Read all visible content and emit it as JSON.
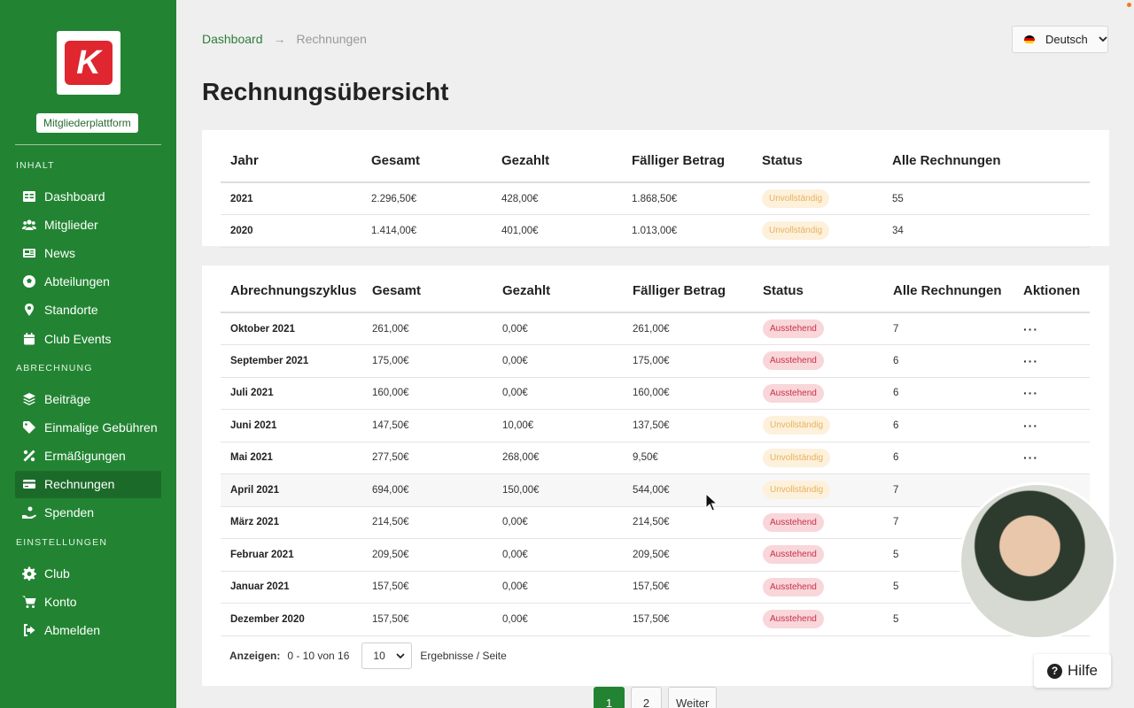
{
  "brand": {
    "logo_letter": "K",
    "platform_label": "Mitgliederplattform",
    "logo_color": "#e0262f",
    "sidebar_color": "#228432"
  },
  "sidebar": {
    "sections": [
      {
        "label": "INHALT",
        "items": [
          {
            "label": "Dashboard",
            "icon": "table-icon"
          },
          {
            "label": "Mitglieder",
            "icon": "users-icon"
          },
          {
            "label": "News",
            "icon": "newspaper-icon"
          },
          {
            "label": "Abteilungen",
            "icon": "football-icon"
          },
          {
            "label": "Standorte",
            "icon": "map-pin-icon"
          },
          {
            "label": "Club Events",
            "icon": "calendar-icon"
          }
        ]
      },
      {
        "label": "ABRECHNUNG",
        "items": [
          {
            "label": "Beiträge",
            "icon": "layers-icon"
          },
          {
            "label": "Einmalige Gebühren",
            "icon": "tag-icon"
          },
          {
            "label": "Ermäßigungen",
            "icon": "percent-icon"
          },
          {
            "label": "Rechnungen",
            "icon": "credit-card-icon",
            "active": true
          },
          {
            "label": "Spenden",
            "icon": "donate-icon"
          }
        ]
      },
      {
        "label": "EINSTELLUNGEN",
        "items": [
          {
            "label": "Club",
            "icon": "gear-icon"
          },
          {
            "label": "Konto",
            "icon": "cart-icon"
          },
          {
            "label": "Abmelden",
            "icon": "logout-icon"
          }
        ]
      }
    ]
  },
  "breadcrumb": {
    "root": "Dashboard",
    "arrow": "→",
    "current": "Rechnungen"
  },
  "language": {
    "label": "Deutsch"
  },
  "page_title": "Rechnungsübersicht",
  "year_table": {
    "headers": [
      "Jahr",
      "Gesamt",
      "Gezahlt",
      "Fälliger Betrag",
      "Status",
      "Alle Rechnungen"
    ],
    "rows": [
      [
        "2021",
        "2.296,50€",
        "428,00€",
        "1.868,50€",
        "Unvollständig",
        "55"
      ],
      [
        "2020",
        "1.414,00€",
        "401,00€",
        "1.013,00€",
        "Unvollständig",
        "34"
      ]
    ]
  },
  "cycle_table": {
    "headers": [
      "Abrechnungszyklus",
      "Gesamt",
      "Gezahlt",
      "Fälliger Betrag",
      "Status",
      "Alle Rechnungen",
      "Aktionen"
    ],
    "rows": [
      [
        "Oktober 2021",
        "261,00€",
        "0,00€",
        "261,00€",
        "Ausstehend",
        "7",
        "···"
      ],
      [
        "September 2021",
        "175,00€",
        "0,00€",
        "175,00€",
        "Ausstehend",
        "6",
        "···"
      ],
      [
        "Juli 2021",
        "160,00€",
        "0,00€",
        "160,00€",
        "Ausstehend",
        "6",
        "···"
      ],
      [
        "Juni 2021",
        "147,50€",
        "10,00€",
        "137,50€",
        "Unvollständig",
        "6",
        "···"
      ],
      [
        "Mai 2021",
        "277,50€",
        "268,00€",
        "9,50€",
        "Unvollständig",
        "6",
        "···"
      ],
      [
        "April 2021",
        "694,00€",
        "150,00€",
        "544,00€",
        "Unvollständig",
        "7",
        ""
      ],
      [
        "März 2021",
        "214,50€",
        "0,00€",
        "214,50€",
        "Ausstehend",
        "7",
        ""
      ],
      [
        "Februar 2021",
        "209,50€",
        "0,00€",
        "209,50€",
        "Ausstehend",
        "5",
        ""
      ],
      [
        "Januar 2021",
        "157,50€",
        "0,00€",
        "157,50€",
        "Ausstehend",
        "5",
        ""
      ],
      [
        "Dezember 2020",
        "157,50€",
        "0,00€",
        "157,50€",
        "Ausstehend",
        "5",
        ""
      ]
    ]
  },
  "footer": {
    "show_label": "Anzeigen:",
    "range": "0 - 10 von 16",
    "per_page": "10",
    "per_page_suffix": "Ergebnisse / Seite"
  },
  "pagination": {
    "pages": [
      "1",
      "2"
    ],
    "next": "Weiter",
    "current": "1"
  },
  "help": {
    "label": "Hilfe"
  }
}
